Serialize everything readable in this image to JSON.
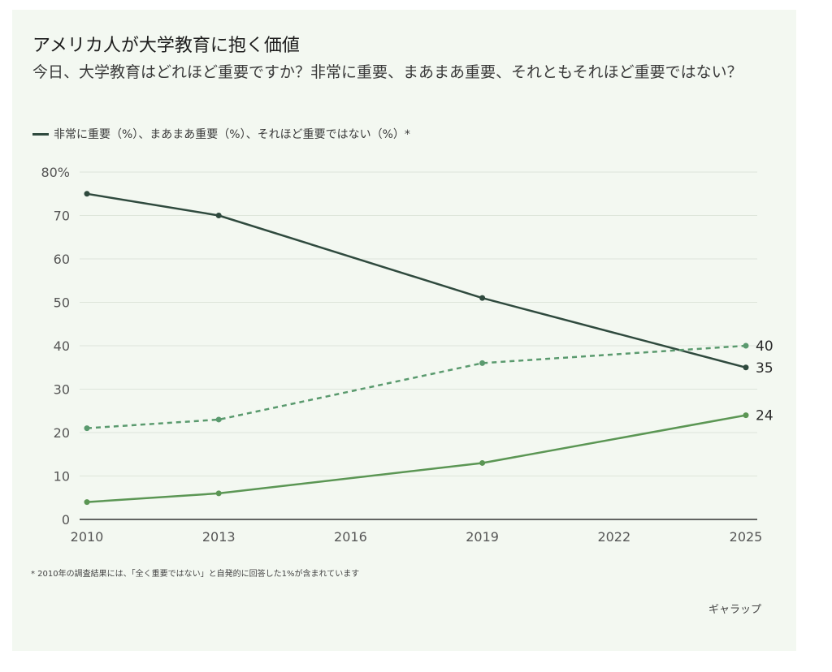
{
  "chart_data": {
    "type": "line",
    "title": "アメリカ人が大学教育に抱く価値",
    "subtitle": "今日、大学教育はどれほど重要ですか？非常に重要、まあまあ重要、それともそれほど重要ではない？",
    "legend_text": "非常に重要（%）、まあまあ重要（%）、それほど重要ではない（%）*",
    "legend_placement": "top-left",
    "x": [
      2010,
      2013,
      2019,
      2025
    ],
    "x_ticks": [
      "2010",
      "2013",
      "2016",
      "2019",
      "2022",
      "2025"
    ],
    "xlim": [
      2010,
      2025
    ],
    "y_ticks": [
      "0",
      "10",
      "20",
      "30",
      "40",
      "50",
      "60",
      "70",
      "80%"
    ],
    "ylim": [
      0,
      80
    ],
    "grid": true,
    "series": [
      {
        "name": "非常に重要",
        "values": [
          75,
          70,
          51,
          35
        ],
        "end_label": "35",
        "color": "#2f4a3e",
        "style": "solid"
      },
      {
        "name": "まあまあ重要",
        "values": [
          21,
          23,
          36,
          40
        ],
        "end_label": "40",
        "color": "#5a9a6e",
        "style": "dashed"
      },
      {
        "name": "それほど重要ではない",
        "values": [
          4,
          6,
          13,
          24
        ],
        "end_label": "24",
        "color": "#5b9654",
        "style": "solid"
      }
    ]
  },
  "footnote": "* 2010年の調査結果には、「全く重要ではない」と自発的に回答した1%が含まれています",
  "source": "ギャラップ",
  "colors": {
    "background": "#f3f8f1",
    "grid": "#dde5da",
    "axis": "#333333"
  }
}
